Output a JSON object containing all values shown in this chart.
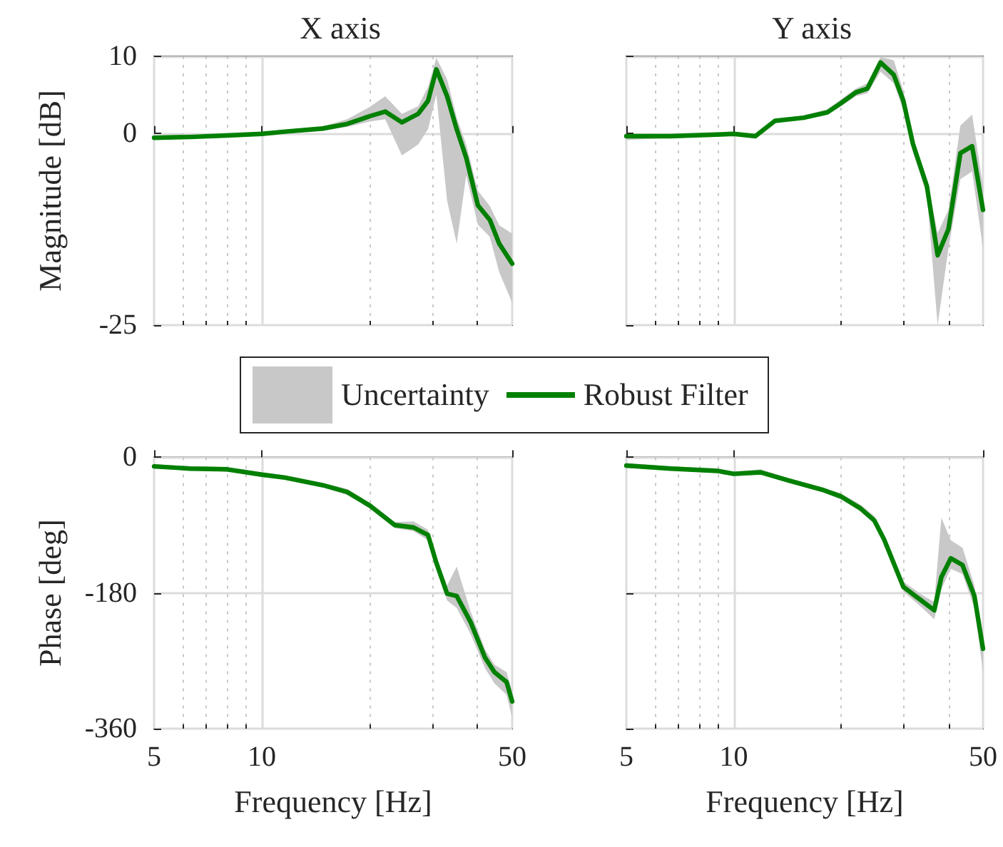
{
  "chart_data": [
    {
      "type": "line",
      "title": "X axis",
      "ylabel": "Magnitude [dB]",
      "log": "x",
      "grid": true,
      "legend": "bottom",
      "tick_labels": "y",
      "annotations": [
        "Uncertainty"
      ],
      "xlim": [
        5,
        50
      ],
      "xticks": [
        5,
        {
          "value": 6,
          "label": null
        },
        {
          "value": 7,
          "label": null
        },
        {
          "value": 8,
          "label": null
        },
        {
          "value": 9,
          "label": null
        },
        10,
        {
          "value": 20,
          "label": null
        },
        {
          "value": 30,
          "label": null
        },
        {
          "value": 40,
          "label": null
        },
        50
      ],
      "ylim": [
        -25,
        10
      ],
      "yticks": [
        -25,
        0,
        10
      ],
      "series": [
        {
          "name": "Robust Filter",
          "color": "#008000",
          "x": [
            5,
            6.3,
            8,
            10,
            11.6,
            14.8,
            17.3,
            20,
            22.1,
            24.6,
            27.3,
            29.1,
            30.7,
            32.9,
            35,
            37.2,
            40.1,
            43.3,
            46,
            50
          ],
          "values": [
            -0.6,
            -0.5,
            -0.3,
            -0.1,
            0.2,
            0.6,
            1.2,
            2.2,
            2.8,
            1.4,
            2.5,
            4.2,
            8.3,
            4.8,
            0.5,
            -3.2,
            -9.4,
            -11.3,
            -14.4,
            -17.0
          ],
          "lower": [
            -0.8,
            -0.7,
            -0.5,
            -0.3,
            0,
            0.3,
            0.8,
            1.5,
            1.8,
            -2.9,
            -1.5,
            0.5,
            5,
            -8.8,
            -14.4,
            -5.5,
            -11.9,
            -13.5,
            -18.1,
            -22.1
          ],
          "upper": [
            -0.4,
            -0.3,
            -0.1,
            0.1,
            0.4,
            0.9,
            1.8,
            3.4,
            4.8,
            2.5,
            3.5,
            6,
            9.8,
            7,
            2,
            -1.5,
            -7.5,
            -9.5,
            -12,
            -13.1
          ]
        }
      ]
    },
    {
      "type": "line",
      "title": "Y axis",
      "log": "x",
      "grid": true,
      "tick_labels": false,
      "xlim": [
        5,
        50
      ],
      "xticks": [
        5,
        {
          "value": 6,
          "label": null
        },
        {
          "value": 7,
          "label": null
        },
        {
          "value": 8,
          "label": null
        },
        {
          "value": 9,
          "label": null
        },
        10,
        {
          "value": 20,
          "label": null
        },
        {
          "value": 30,
          "label": null
        },
        {
          "value": 40,
          "label": null
        },
        50
      ],
      "ylim": [
        -25,
        10
      ],
      "yticks": [
        -25,
        0,
        10
      ],
      "series": [
        {
          "color": "#008000",
          "x": [
            5,
            6.65,
            10,
            11.5,
            13.05,
            15.7,
            18.3,
            20,
            22,
            23.7,
            25.8,
            28.1,
            29.9,
            31.8,
            34.8,
            37.3,
            40,
            43.2,
            46.6,
            50
          ],
          "values": [
            -0.4,
            -0.4,
            -0.1,
            -0.4,
            1.6,
            2.0,
            2.7,
            3.9,
            5.3,
            5.8,
            9.2,
            7.6,
            4.2,
            -1.4,
            -6.9,
            -15.9,
            -12.5,
            -2.6,
            -1.7,
            -10.0
          ],
          "lower": [
            -0.9,
            -0.6,
            -0.3,
            -0.6,
            1.4,
            1.8,
            2.4,
            3.5,
            4.8,
            5.2,
            8.0,
            6.5,
            3.0,
            -2.5,
            -8,
            -25,
            -15,
            -6,
            -5,
            -15
          ],
          "upper": [
            -0.2,
            -0.2,
            0.1,
            -0.2,
            1.8,
            2.3,
            3.1,
            4.4,
            5.8,
            6.5,
            9.9,
            9.5,
            5.5,
            -0.5,
            -6,
            -13,
            -10,
            1,
            2.4,
            -7
          ]
        }
      ]
    },
    {
      "type": "line",
      "ylabel": "Phase [deg]",
      "xlabel": "Frequency [Hz]",
      "log": "x",
      "grid": true,
      "xlim": [
        5,
        50
      ],
      "xticks": [
        5,
        {
          "value": 6,
          "label": null
        },
        {
          "value": 7,
          "label": null
        },
        {
          "value": 8,
          "label": null
        },
        {
          "value": 9,
          "label": null
        },
        10,
        {
          "value": 20,
          "label": null
        },
        {
          "value": 30,
          "label": null
        },
        {
          "value": 40,
          "label": null
        },
        50
      ],
      "ylim": [
        -360,
        0
      ],
      "yticks": [
        -360,
        -180,
        0
      ],
      "series": [
        {
          "color": "#008000",
          "x": [
            5,
            6.3,
            8,
            10,
            11.6,
            14.8,
            17.3,
            20,
            23.5,
            26.5,
            29.1,
            30.7,
            32.9,
            35,
            38.3,
            42,
            44.6,
            48.2,
            50
          ],
          "values": [
            -12,
            -15,
            -16,
            -23,
            -27,
            -37,
            -46,
            -64,
            -90,
            -93,
            -103,
            -140,
            -181,
            -184,
            -219,
            -266,
            -285,
            -298,
            -324
          ],
          "lower": [
            -15,
            -17,
            -19,
            -26,
            -30,
            -40,
            -50,
            -68,
            -94,
            -98,
            -110,
            -148,
            -190,
            -200,
            -235,
            -280,
            -300,
            -315,
            -345
          ],
          "upper": [
            -9,
            -12,
            -13,
            -20,
            -24,
            -34,
            -42,
            -60,
            -86,
            -85,
            -96,
            -132,
            -170,
            -145,
            -205,
            -255,
            -275,
            -285,
            -310
          ]
        }
      ]
    },
    {
      "type": "line",
      "xlabel": "Frequency [Hz]",
      "log": "x",
      "grid": true,
      "tick_labels": "x",
      "xlim": [
        5,
        50
      ],
      "xticks": [
        5,
        {
          "value": 6,
          "label": null
        },
        {
          "value": 7,
          "label": null
        },
        {
          "value": 8,
          "label": null
        },
        {
          "value": 9,
          "label": null
        },
        10,
        {
          "value": 20,
          "label": null
        },
        {
          "value": 30,
          "label": null
        },
        {
          "value": 40,
          "label": null
        },
        50
      ],
      "ylim": [
        -360,
        0
      ],
      "yticks": [
        -360,
        -180,
        0
      ],
      "series": [
        {
          "color": "#008000",
          "x": [
            5,
            6.65,
            9,
            10,
            11.9,
            14.3,
            17.7,
            20,
            22.7,
            24.8,
            26.4,
            29.9,
            33.8,
            36.5,
            38.2,
            40.6,
            43.8,
            47.3,
            50
          ],
          "values": [
            -11,
            -15,
            -18,
            -22,
            -20,
            -31,
            -43,
            -52,
            -68,
            -84,
            -109,
            -172,
            -191,
            -203,
            -159,
            -134,
            -143,
            -184,
            -254
          ],
          "lower": [
            -14,
            -17,
            -21,
            -25,
            -23,
            -34,
            -46,
            -56,
            -72,
            -88,
            -114,
            -178,
            -200,
            -215,
            -175,
            -148,
            -155,
            -200,
            -285
          ],
          "upper": [
            -8,
            -12,
            -15,
            -19,
            -16,
            -28,
            -40,
            -48,
            -63,
            -78,
            -104,
            -165,
            -183,
            -192,
            -80,
            -110,
            -120,
            -170,
            -240
          ]
        }
      ]
    }
  ]
}
